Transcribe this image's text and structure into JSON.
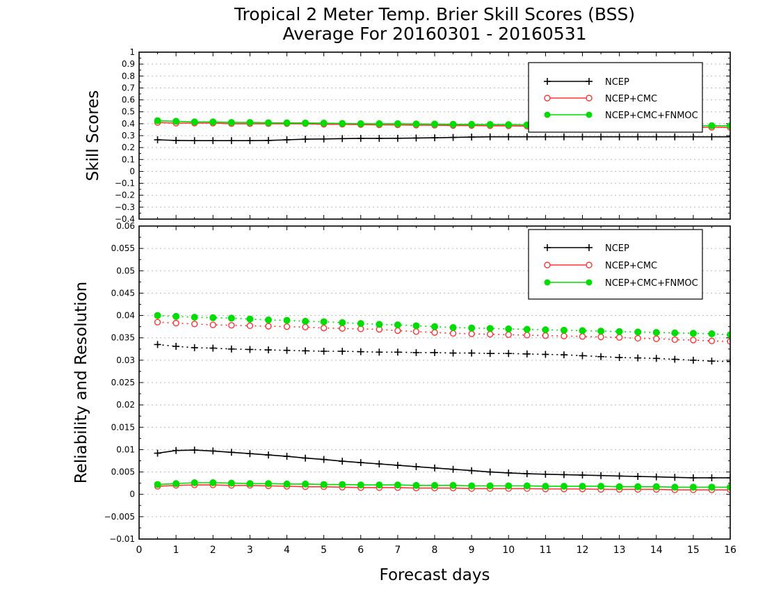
{
  "title_line1": "Tropical 2 Meter Temp. Brier Skill Scores (BSS)",
  "title_line2": "Average For 20160301 - 20160531",
  "xlabel": "Forecast days",
  "colors": {
    "NCEP": "#000000",
    "NCEP+CMC": "#ff3333",
    "NCEP+CMC+FNMOC": "#00dd00"
  },
  "chart_data": [
    {
      "type": "line",
      "ylabel": "Skill Scores",
      "xlim": [
        0,
        16
      ],
      "ylim": [
        -0.4,
        1
      ],
      "xticks": [
        "0",
        "1",
        "2",
        "3",
        "4",
        "5",
        "6",
        "7",
        "8",
        "9",
        "10",
        "11",
        "12",
        "13",
        "14",
        "15",
        "16"
      ],
      "yticks": [
        "-0.4",
        "-0.3",
        "-0.2",
        "-0.1",
        "0",
        "0.1",
        "0.2",
        "0.3",
        "0.4",
        "0.5",
        "0.6",
        "0.7",
        "0.8",
        "0.9",
        "1"
      ],
      "grid": true,
      "legend_position": "top-right",
      "x": [
        0.5,
        1,
        1.5,
        2,
        2.5,
        3,
        3.5,
        4,
        4.5,
        5,
        5.5,
        6,
        6.5,
        7,
        7.5,
        8,
        8.5,
        9,
        9.5,
        10,
        10.5,
        11,
        11.5,
        12,
        12.5,
        13,
        13.5,
        14,
        14.5,
        15,
        15.5,
        16
      ],
      "series": [
        {
          "name": "NCEP",
          "marker": "plus",
          "line": "solid",
          "values": [
            0.265,
            0.26,
            0.258,
            0.258,
            0.258,
            0.258,
            0.26,
            0.265,
            0.27,
            0.272,
            0.275,
            0.277,
            0.277,
            0.278,
            0.28,
            0.282,
            0.285,
            0.288,
            0.29,
            0.29,
            0.29,
            0.29,
            0.29,
            0.29,
            0.29,
            0.29,
            0.29,
            0.29,
            0.29,
            0.29,
            0.29,
            0.29
          ]
        },
        {
          "name": "NCEP+CMC",
          "marker": "open-circle",
          "line": "solid",
          "values": [
            0.41,
            0.405,
            0.405,
            0.405,
            0.4,
            0.4,
            0.4,
            0.4,
            0.4,
            0.395,
            0.395,
            0.392,
            0.39,
            0.39,
            0.388,
            0.387,
            0.385,
            0.385,
            0.383,
            0.382,
            0.38,
            0.38,
            0.378,
            0.377,
            0.376,
            0.375,
            0.374,
            0.373,
            0.372,
            0.37,
            0.37,
            0.368
          ]
        },
        {
          "name": "NCEP+CMC+FNMOC",
          "marker": "filled-circle",
          "line": "solid",
          "values": [
            0.425,
            0.42,
            0.415,
            0.415,
            0.41,
            0.41,
            0.408,
            0.407,
            0.406,
            0.405,
            0.402,
            0.4,
            0.4,
            0.4,
            0.398,
            0.397,
            0.395,
            0.394,
            0.393,
            0.392,
            0.39,
            0.39,
            0.39,
            0.389,
            0.388,
            0.388,
            0.387,
            0.386,
            0.385,
            0.384,
            0.383,
            0.382
          ]
        }
      ]
    },
    {
      "type": "line",
      "ylabel": "Reliability and Resolution",
      "xlim": [
        0,
        16
      ],
      "ylim": [
        -0.01,
        0.06
      ],
      "xticks": [
        "0",
        "1",
        "2",
        "3",
        "4",
        "5",
        "6",
        "7",
        "8",
        "9",
        "10",
        "11",
        "12",
        "13",
        "14",
        "15",
        "16"
      ],
      "yticks": [
        "-0.01",
        "-0.005",
        "0",
        "0.005",
        "0.01",
        "0.015",
        "0.02",
        "0.025",
        "0.03",
        "0.035",
        "0.04",
        "0.045",
        "0.05",
        "0.055",
        "0.06"
      ],
      "grid": true,
      "legend_position": "top-right",
      "x": [
        0.5,
        1,
        1.5,
        2,
        2.5,
        3,
        3.5,
        4,
        4.5,
        5,
        5.5,
        6,
        6.5,
        7,
        7.5,
        8,
        8.5,
        9,
        9.5,
        10,
        10.5,
        11,
        11.5,
        12,
        12.5,
        13,
        13.5,
        14,
        14.5,
        15,
        15.5,
        16
      ],
      "series": [
        {
          "name": "NCEP",
          "group": "resolution",
          "marker": "plus",
          "line": "dotted",
          "values": [
            0.0335,
            0.0331,
            0.0328,
            0.0327,
            0.0325,
            0.0324,
            0.0323,
            0.0322,
            0.0321,
            0.032,
            0.032,
            0.0319,
            0.0318,
            0.0318,
            0.0317,
            0.0317,
            0.0316,
            0.0316,
            0.0315,
            0.0315,
            0.0314,
            0.0313,
            0.0312,
            0.031,
            0.0308,
            0.0306,
            0.0305,
            0.0304,
            0.0302,
            0.03,
            0.0298,
            0.0297
          ]
        },
        {
          "name": "NCEP+CMC",
          "group": "resolution",
          "marker": "open-circle",
          "line": "dotted",
          "values": [
            0.0385,
            0.0383,
            0.0381,
            0.0379,
            0.0378,
            0.0377,
            0.0376,
            0.0375,
            0.0374,
            0.0372,
            0.0371,
            0.037,
            0.0369,
            0.0366,
            0.0364,
            0.0362,
            0.036,
            0.0359,
            0.0358,
            0.0357,
            0.0356,
            0.0355,
            0.0354,
            0.0353,
            0.0352,
            0.0351,
            0.0349,
            0.0348,
            0.0346,
            0.0345,
            0.0343,
            0.0342
          ]
        },
        {
          "name": "NCEP+CMC+FNMOC",
          "group": "resolution",
          "marker": "filled-circle",
          "line": "dotted",
          "values": [
            0.04,
            0.0398,
            0.0396,
            0.0395,
            0.0394,
            0.0392,
            0.039,
            0.0389,
            0.0387,
            0.0386,
            0.0384,
            0.0382,
            0.038,
            0.0379,
            0.0377,
            0.0375,
            0.0373,
            0.0372,
            0.0371,
            0.037,
            0.0369,
            0.0368,
            0.0367,
            0.0366,
            0.0365,
            0.0364,
            0.0363,
            0.0362,
            0.0361,
            0.036,
            0.0359,
            0.0357
          ]
        },
        {
          "name": "NCEP",
          "group": "reliability",
          "marker": "plus",
          "line": "solid",
          "values": [
            0.0092,
            0.0098,
            0.0099,
            0.0097,
            0.0094,
            0.0091,
            0.0088,
            0.0085,
            0.0081,
            0.0078,
            0.0074,
            0.0071,
            0.0068,
            0.0065,
            0.0062,
            0.0059,
            0.0056,
            0.0053,
            0.005,
            0.0048,
            0.0046,
            0.0045,
            0.0044,
            0.0043,
            0.0042,
            0.0041,
            0.004,
            0.0039,
            0.0038,
            0.0037,
            0.0037,
            0.0037
          ]
        },
        {
          "name": "NCEP+CMC",
          "group": "reliability",
          "marker": "open-circle",
          "line": "solid",
          "values": [
            0.0018,
            0.002,
            0.0021,
            0.0021,
            0.002,
            0.002,
            0.0019,
            0.0018,
            0.0017,
            0.0017,
            0.0016,
            0.0015,
            0.0015,
            0.0015,
            0.0014,
            0.0014,
            0.0014,
            0.0013,
            0.0013,
            0.0013,
            0.0013,
            0.0012,
            0.0012,
            0.0012,
            0.0011,
            0.0011,
            0.0011,
            0.0011,
            0.001,
            0.001,
            0.001,
            0.001
          ]
        },
        {
          "name": "NCEP+CMC+FNMOC",
          "group": "reliability",
          "marker": "filled-circle",
          "line": "solid",
          "values": [
            0.0022,
            0.0024,
            0.0026,
            0.0026,
            0.0025,
            0.0024,
            0.0024,
            0.0023,
            0.0023,
            0.0022,
            0.0022,
            0.0021,
            0.0021,
            0.0021,
            0.002,
            0.002,
            0.002,
            0.0019,
            0.0019,
            0.0019,
            0.0019,
            0.0018,
            0.0018,
            0.0018,
            0.0018,
            0.0017,
            0.0017,
            0.0017,
            0.0016,
            0.0016,
            0.0016,
            0.0016
          ]
        }
      ]
    }
  ],
  "legend": [
    "NCEP",
    "NCEP+CMC",
    "NCEP+CMC+FNMOC"
  ]
}
